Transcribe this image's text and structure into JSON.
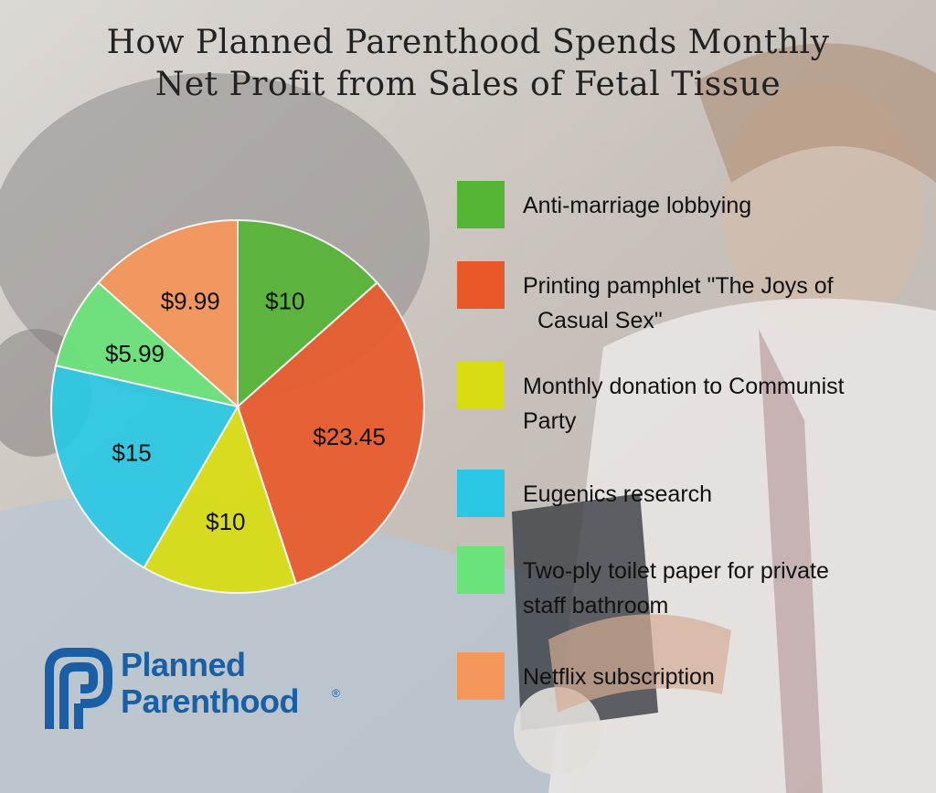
{
  "title_lines": [
    "How Planned Parenthood Spends Monthly",
    "Net Profit from Sales of Fetal Tissue"
  ],
  "chart_data": {
    "type": "pie",
    "title": "How Planned Parenthood Spends Monthly Net Profit from Sales of Fetal Tissue",
    "legend_position": "right",
    "slices": [
      {
        "label": "Anti-marriage lobbying",
        "legend_lines": [
          "Anti-marriage lobbying"
        ],
        "value": 10,
        "value_label": "$10",
        "color": "#55b535"
      },
      {
        "label": "Printing pamphlet \"The Joys of Casual Sex\"",
        "legend_lines": [
          "Printing pamphlet \"The Joys of",
          "Casual Sex\""
        ],
        "value": 23.45,
        "value_label": "$23.45",
        "color": "#e8592a"
      },
      {
        "label": "Monthly donation to Communist Party",
        "legend_lines": [
          "Monthly donation to Communist",
          "Party"
        ],
        "value": 10,
        "value_label": "$10",
        "color": "#d9dc10"
      },
      {
        "label": "Eugenics research",
        "legend_lines": [
          "Eugenics research"
        ],
        "value": 15,
        "value_label": "$15",
        "color": "#2ac8e4"
      },
      {
        "label": "Two-ply toilet paper for private staff bathroom",
        "legend_lines": [
          "Two-ply toilet paper for private",
          "staff bathroom"
        ],
        "value": 5.99,
        "value_label": "$5.99",
        "color": "#6ae47a"
      },
      {
        "label": "Netflix subscription",
        "legend_lines": [
          "Netflix subscription"
        ],
        "value": 9.99,
        "value_label": "$9.99",
        "color": "#f5975a"
      }
    ]
  },
  "logo": {
    "line1": "Planned",
    "line2": "Parenthood",
    "mark": "®",
    "color": "#1a5fa6"
  }
}
